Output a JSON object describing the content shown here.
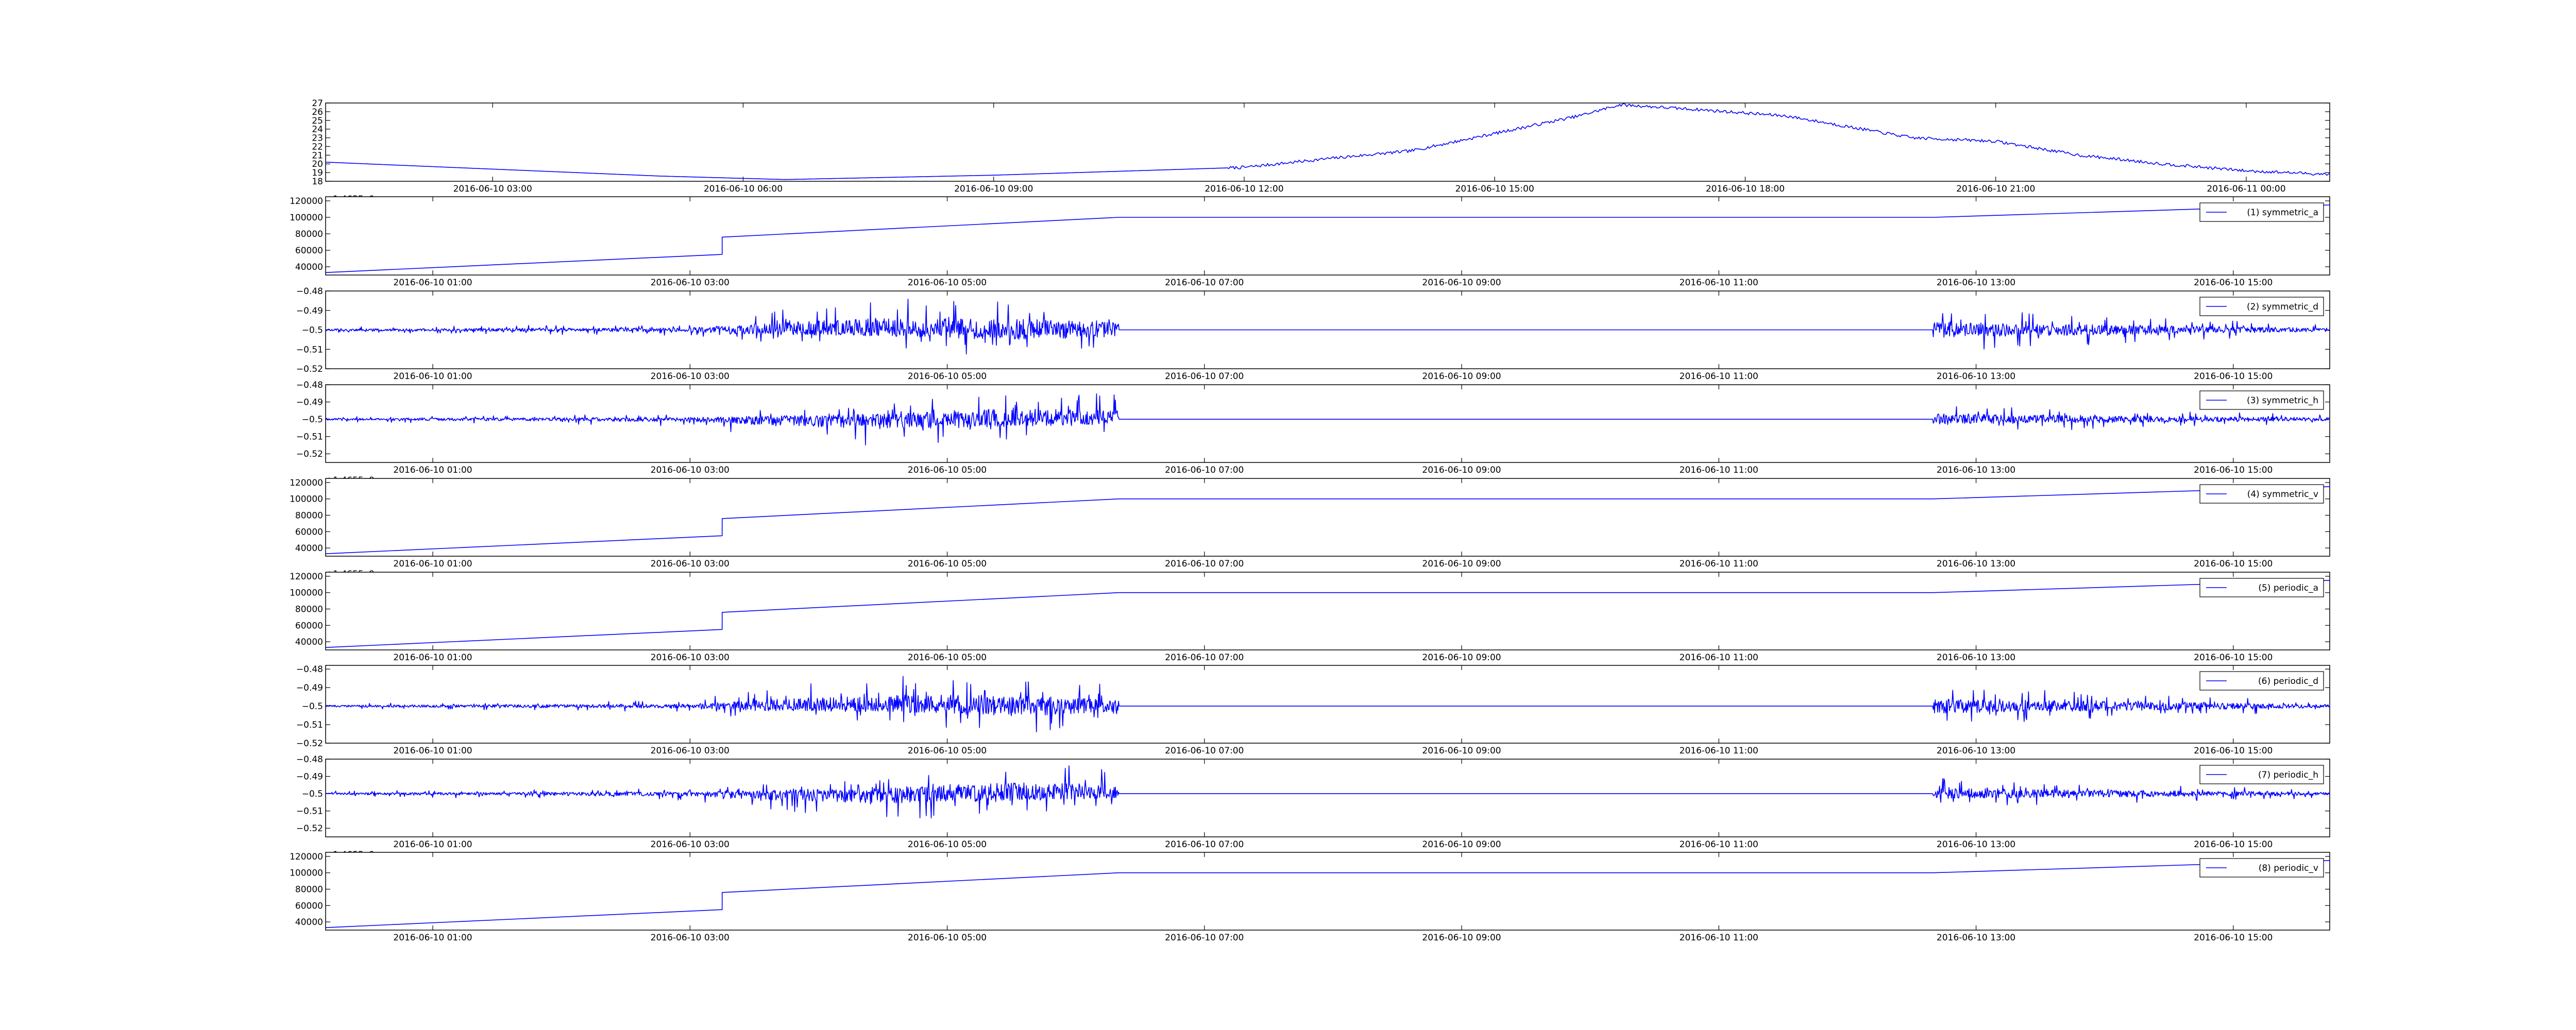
{
  "chart_data": [
    {
      "type": "line",
      "title": "",
      "xlabel": "",
      "ylabel": "",
      "color": "#0000ff",
      "grid": false,
      "legend": null,
      "offset_label": "+1.4655e9",
      "ylim": [
        18,
        27
      ],
      "yticks": [
        18,
        19,
        20,
        21,
        22,
        23,
        24,
        25,
        26,
        27
      ],
      "xlim": [
        "2016-06-10 01:00",
        "2016-06-11 01:00"
      ],
      "xticks": [
        "2016-06-10 03:00",
        "2016-06-10 06:00",
        "2016-06-10 09:00",
        "2016-06-10 12:00",
        "2016-06-10 15:00",
        "2016-06-10 18:00",
        "2016-06-10 21:00",
        "2016-06-11 00:00"
      ],
      "x": [
        "2016-06-10 01:00",
        "2016-06-10 03:00",
        "2016-06-10 05:00",
        "2016-06-10 06:30",
        "2016-06-10 09:00",
        "2016-06-10 12:00",
        "2016-06-10 13:00",
        "2016-06-10 14:00",
        "2016-06-10 15:00",
        "2016-06-10 16:00",
        "2016-06-10 16:30",
        "2016-06-10 17:30",
        "2016-06-10 18:30",
        "2016-06-10 20:00",
        "2016-06-10 21:00",
        "2016-06-10 22:00",
        "2016-06-10 23:00",
        "2016-06-11 00:00",
        "2016-06-11 01:00"
      ],
      "y": [
        20.2,
        19.4,
        18.6,
        18.2,
        18.7,
        19.6,
        20.6,
        21.5,
        23.5,
        25.5,
        26.8,
        26.2,
        25.5,
        23.0,
        22.6,
        21.0,
        20.0,
        19.2,
        18.8
      ]
    },
    {
      "type": "line",
      "legend": "(1) symmetric_a",
      "legend_position": "upper right",
      "color": "#0000ff",
      "ylim": [
        30000,
        125000
      ],
      "yticks": [
        40000,
        60000,
        80000,
        100000,
        120000
      ],
      "xlim": [
        "2016-06-10 00:10",
        "2016-06-10 15:45"
      ],
      "xticks": [
        "2016-06-10 01:00",
        "2016-06-10 03:00",
        "2016-06-10 05:00",
        "2016-06-10 07:00",
        "2016-06-10 09:00",
        "2016-06-10 11:00",
        "2016-06-10 13:00",
        "2016-06-10 15:00"
      ],
      "x": [
        "2016-06-10 00:10",
        "2016-06-10 03:15",
        "2016-06-10 03:15",
        "2016-06-10 06:20",
        "2016-06-10 12:40",
        "2016-06-10 15:45"
      ],
      "y": [
        33000,
        55000,
        76000,
        100000,
        100000,
        115000
      ]
    },
    {
      "type": "line",
      "legend": "(2) symmetric_d",
      "legend_position": "upper right",
      "color": "#0000ff",
      "ylim": [
        -0.52,
        -0.48
      ],
      "yticks": [
        -0.52,
        -0.51,
        -0.5,
        -0.49,
        -0.48
      ],
      "xlim": [
        "2016-06-10 00:10",
        "2016-06-10 15:45"
      ],
      "xticks": [
        "2016-06-10 01:00",
        "2016-06-10 03:00",
        "2016-06-10 05:00",
        "2016-06-10 07:00",
        "2016-06-10 09:00",
        "2016-06-10 11:00",
        "2016-06-10 13:00",
        "2016-06-10 15:00"
      ],
      "x": [
        "2016-06-10 00:10",
        "2016-06-10 03:00",
        "2016-06-10 03:30",
        "2016-06-10 04:30",
        "2016-06-10 05:30",
        "2016-06-10 06:20",
        "2016-06-10 12:40",
        "2016-06-10 15:45"
      ],
      "y_center": -0.5,
      "y_band_low": [
        -0.5015,
        -0.503,
        -0.507,
        -0.509,
        -0.515,
        -0.511,
        -0.511,
        -0.5025
      ],
      "y_band_high": [
        -0.4985,
        -0.497,
        -0.491,
        -0.482,
        -0.484,
        -0.489,
        -0.489,
        -0.4975
      ]
    },
    {
      "type": "line",
      "legend": "(3) symmetric_h",
      "legend_position": "upper right",
      "color": "#0000ff",
      "offset_label": "+1.4655e9",
      "ylim": [
        -0.525,
        -0.48
      ],
      "yticks": [
        -0.52,
        -0.51,
        -0.5,
        -0.49,
        -0.48
      ],
      "xlim": [
        "2016-06-10 00:10",
        "2016-06-10 15:45"
      ],
      "xticks": [
        "2016-06-10 01:00",
        "2016-06-10 03:00",
        "2016-06-10 05:00",
        "2016-06-10 07:00",
        "2016-06-10 09:00",
        "2016-06-10 11:00",
        "2016-06-10 13:00",
        "2016-06-10 15:00"
      ],
      "x": [
        "2016-06-10 00:10",
        "2016-06-10 03:00",
        "2016-06-10 03:30",
        "2016-06-10 04:30",
        "2016-06-10 05:30",
        "2016-06-10 06:20",
        "2016-06-10 12:40",
        "2016-06-10 15:45"
      ],
      "y_center": -0.5,
      "y_band_low": [
        -0.5015,
        -0.504,
        -0.51,
        -0.516,
        -0.512,
        -0.508,
        -0.508,
        -0.5025
      ],
      "y_band_high": [
        -0.4985,
        -0.497,
        -0.495,
        -0.491,
        -0.481,
        -0.486,
        -0.491,
        -0.4975
      ]
    },
    {
      "type": "line",
      "legend": "(4) symmetric_v",
      "legend_position": "upper right",
      "color": "#0000ff",
      "offset_label": "+1.4655e9",
      "ylim": [
        30000,
        125000
      ],
      "yticks": [
        40000,
        60000,
        80000,
        100000,
        120000
      ],
      "xlim": [
        "2016-06-10 00:10",
        "2016-06-10 15:45"
      ],
      "xticks": [
        "2016-06-10 01:00",
        "2016-06-10 03:00",
        "2016-06-10 05:00",
        "2016-06-10 07:00",
        "2016-06-10 09:00",
        "2016-06-10 11:00",
        "2016-06-10 13:00",
        "2016-06-10 15:00"
      ],
      "x": [
        "2016-06-10 00:10",
        "2016-06-10 03:15",
        "2016-06-10 03:15",
        "2016-06-10 06:20",
        "2016-06-10 12:40",
        "2016-06-10 15:45"
      ],
      "y": [
        33000,
        55000,
        76000,
        100000,
        100000,
        115000
      ]
    },
    {
      "type": "line",
      "legend": "(5) periodic_a",
      "legend_position": "upper right",
      "color": "#0000ff",
      "ylim": [
        30000,
        125000
      ],
      "yticks": [
        40000,
        60000,
        80000,
        100000,
        120000
      ],
      "xlim": [
        "2016-06-10 00:10",
        "2016-06-10 15:45"
      ],
      "xticks": [
        "2016-06-10 01:00",
        "2016-06-10 03:00",
        "2016-06-10 05:00",
        "2016-06-10 07:00",
        "2016-06-10 09:00",
        "2016-06-10 11:00",
        "2016-06-10 13:00",
        "2016-06-10 15:00"
      ],
      "x": [
        "2016-06-10 00:10",
        "2016-06-10 03:15",
        "2016-06-10 03:15",
        "2016-06-10 06:20",
        "2016-06-10 12:40",
        "2016-06-10 15:45"
      ],
      "y": [
        33000,
        55000,
        76000,
        100000,
        100000,
        115000
      ]
    },
    {
      "type": "line",
      "legend": "(6) periodic_d",
      "legend_position": "upper right",
      "color": "#0000ff",
      "ylim": [
        -0.52,
        -0.478
      ],
      "yticks": [
        -0.52,
        -0.51,
        -0.5,
        -0.49,
        -0.48
      ],
      "xlim": [
        "2016-06-10 00:10",
        "2016-06-10 15:45"
      ],
      "xticks": [
        "2016-06-10 01:00",
        "2016-06-10 03:00",
        "2016-06-10 05:00",
        "2016-06-10 07:00",
        "2016-06-10 09:00",
        "2016-06-10 11:00",
        "2016-06-10 13:00",
        "2016-06-10 15:00"
      ],
      "x": [
        "2016-06-10 00:10",
        "2016-06-10 03:00",
        "2016-06-10 03:30",
        "2016-06-10 04:30",
        "2016-06-10 05:30",
        "2016-06-10 06:20",
        "2016-06-10 12:40",
        "2016-06-10 15:45"
      ],
      "y_center": -0.5,
      "y_band_low": [
        -0.5015,
        -0.503,
        -0.507,
        -0.509,
        -0.515,
        -0.511,
        -0.511,
        -0.5025
      ],
      "y_band_high": [
        -0.4985,
        -0.497,
        -0.491,
        -0.482,
        -0.484,
        -0.489,
        -0.489,
        -0.4975
      ]
    },
    {
      "type": "line",
      "legend": "(7) periodic_h",
      "legend_position": "upper right",
      "color": "#0000ff",
      "offset_label": "+1.4655e9",
      "ylim": [
        -0.525,
        -0.48
      ],
      "yticks": [
        -0.52,
        -0.51,
        -0.5,
        -0.49,
        -0.48
      ],
      "xlim": [
        "2016-06-10 00:10",
        "2016-06-10 15:45"
      ],
      "xticks": [
        "2016-06-10 01:00",
        "2016-06-10 03:00",
        "2016-06-10 05:00",
        "2016-06-10 07:00",
        "2016-06-10 09:00",
        "2016-06-10 11:00",
        "2016-06-10 13:00",
        "2016-06-10 15:00"
      ],
      "x": [
        "2016-06-10 00:10",
        "2016-06-10 03:00",
        "2016-06-10 03:30",
        "2016-06-10 04:30",
        "2016-06-10 05:30",
        "2016-06-10 06:20",
        "2016-06-10 12:40",
        "2016-06-10 15:45"
      ],
      "y_center": -0.5,
      "y_band_low": [
        -0.5015,
        -0.504,
        -0.51,
        -0.516,
        -0.512,
        -0.508,
        -0.508,
        -0.5025
      ],
      "y_band_high": [
        -0.4985,
        -0.497,
        -0.495,
        -0.491,
        -0.481,
        -0.486,
        -0.491,
        -0.4975
      ]
    },
    {
      "type": "line",
      "legend": "(8) periodic_v",
      "legend_position": "upper right",
      "color": "#0000ff",
      "ylim": [
        30000,
        125000
      ],
      "yticks": [
        40000,
        60000,
        80000,
        100000,
        120000
      ],
      "xlim": [
        "2016-06-10 00:10",
        "2016-06-10 15:45"
      ],
      "xticks": [
        "2016-06-10 01:00",
        "2016-06-10 03:00",
        "2016-06-10 05:00",
        "2016-06-10 07:00",
        "2016-06-10 09:00",
        "2016-06-10 11:00",
        "2016-06-10 13:00",
        "2016-06-10 15:00"
      ],
      "x": [
        "2016-06-10 00:10",
        "2016-06-10 03:15",
        "2016-06-10 03:15",
        "2016-06-10 06:20",
        "2016-06-10 12:40",
        "2016-06-10 15:45"
      ],
      "y": [
        33000,
        55000,
        76000,
        100000,
        100000,
        115000
      ]
    }
  ]
}
